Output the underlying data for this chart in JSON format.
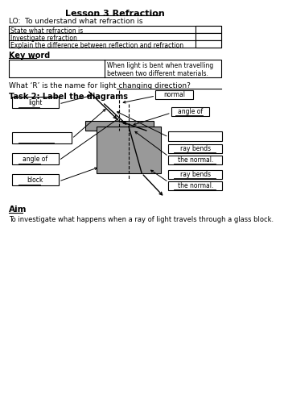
{
  "title": "Lesson 3 Refraction",
  "lo": "LO:  To understand what refraction is",
  "tasks": [
    "State what refraction is",
    "Investigate refraction",
    "Explain the difference between reflection and refraction"
  ],
  "keyword_label": "Key word",
  "keyword_def": "When light is bent when travelling\nbetween two different materials.",
  "question": "What ‘R’ is the name for light changing direction?  ",
  "task2_label": "Task 2: Label the diagrams",
  "aim_title": "Aim",
  "aim_text": "To investigate what happens when a ray of light travels through a glass block.",
  "bg_color": "#ffffff",
  "gray_block": "#999999"
}
